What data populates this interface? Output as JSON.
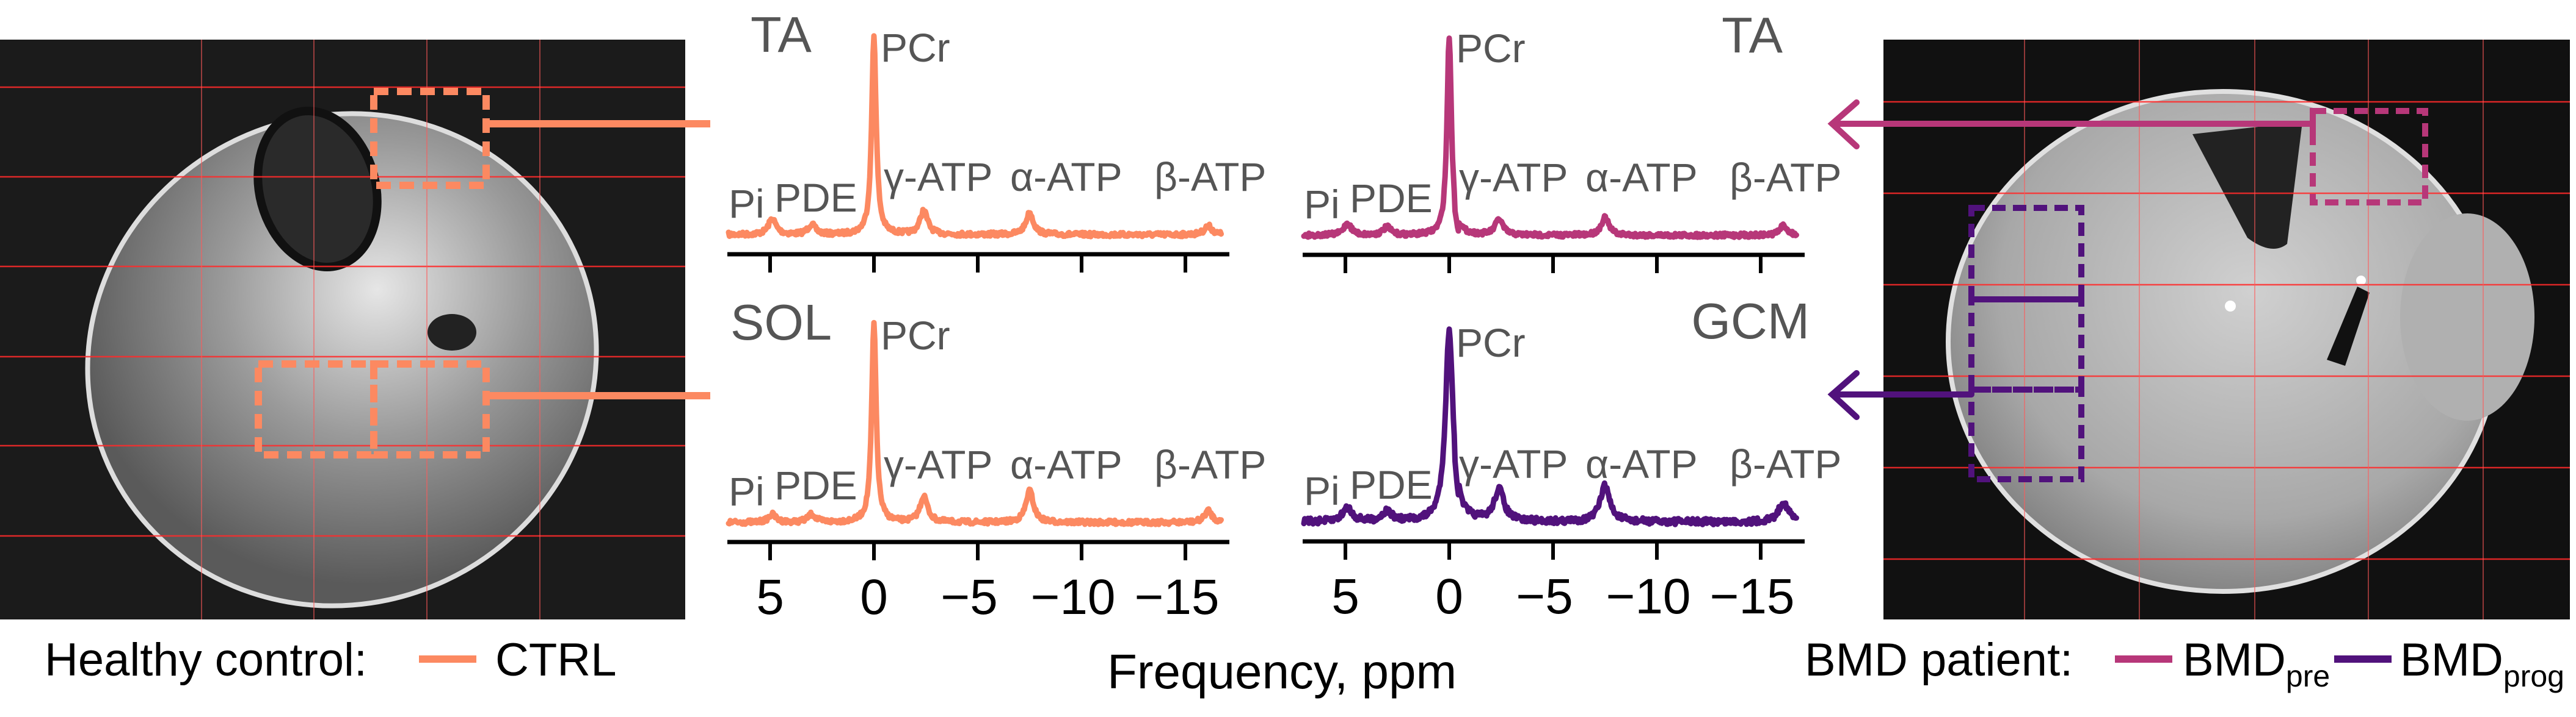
{
  "colors": {
    "ctrl": "#FC8961",
    "bmd_pre": "#B73779",
    "bmd_prog": "#51127C",
    "grid_overlay": "#FF2A2A",
    "label_gray": "#555555"
  },
  "left_image": {
    "icon": "mri-leg-cross-section-healthy"
  },
  "right_image": {
    "icon": "mri-leg-cross-section-bmd"
  },
  "legend_left": {
    "title": "Healthy control:",
    "entries": [
      {
        "label": "CTRL"
      }
    ]
  },
  "legend_right": {
    "title": "BMD patient:",
    "entries": [
      {
        "label": "BMD",
        "sub": "pre"
      },
      {
        "label": "BMD",
        "sub": "prog"
      }
    ]
  },
  "xlabel": "Frequency, ppm",
  "chart_data": [
    {
      "type": "line",
      "panel": "TA",
      "group": "CTRL",
      "color": "#FC8961",
      "xlim": [
        7,
        -17
      ],
      "xticks": [
        "5",
        "0",
        "−5",
        "−10",
        "−15"
      ],
      "xtick_values": [
        5,
        0,
        -5,
        -10,
        -15
      ],
      "peaks": [
        {
          "label": "Pi",
          "ppm": 4.9,
          "height": 0.08
        },
        {
          "label": "PDE",
          "ppm": 3.0,
          "height": 0.05
        },
        {
          "label": "PCr",
          "ppm": 0,
          "height": 1.0
        },
        {
          "label": "γ-ATP",
          "ppm": -2.4,
          "height": 0.12
        },
        {
          "label": "α-ATP",
          "ppm": -7.5,
          "height": 0.11
        },
        {
          "label": "β-ATP",
          "ppm": -16.1,
          "height": 0.045
        }
      ]
    },
    {
      "type": "line",
      "panel": "SOL",
      "group": "CTRL",
      "color": "#FC8961",
      "xlim": [
        7,
        -17
      ],
      "xticks": [
        "5",
        "0",
        "−5",
        "−10",
        "−15"
      ],
      "xtick_values": [
        5,
        0,
        -5,
        -10,
        -15
      ],
      "peaks": [
        {
          "label": "Pi",
          "ppm": 4.9,
          "height": 0.04
        },
        {
          "label": "PDE",
          "ppm": 3.0,
          "height": 0.04
        },
        {
          "label": "PCr",
          "ppm": 0,
          "height": 1.0
        },
        {
          "label": "γ-ATP",
          "ppm": -2.4,
          "height": 0.13
        },
        {
          "label": "α-ATP",
          "ppm": -7.5,
          "height": 0.16
        },
        {
          "label": "β-ATP",
          "ppm": -16.1,
          "height": 0.06
        }
      ]
    },
    {
      "type": "line",
      "panel": "TA",
      "group": "BMD pre",
      "color": "#B73779",
      "xlim": [
        7,
        -17
      ],
      "xticks": [
        "5",
        "0",
        "−5",
        "−10",
        "−15"
      ],
      "xtick_values": [
        5,
        0,
        -5,
        -10,
        -15
      ],
      "peaks": [
        {
          "label": "Pi",
          "ppm": 4.9,
          "height": 0.06
        },
        {
          "label": "PDE",
          "ppm": 3.0,
          "height": 0.04
        },
        {
          "label": "PCr",
          "ppm": 0,
          "height": 1.0
        },
        {
          "label": "γ-ATP",
          "ppm": -2.4,
          "height": 0.08
        },
        {
          "label": "α-ATP",
          "ppm": -7.5,
          "height": 0.09
        },
        {
          "label": "β-ATP",
          "ppm": -16.1,
          "height": 0.05
        }
      ]
    },
    {
      "type": "line",
      "panel": "GCM",
      "group": "BMD prog",
      "color": "#51127C",
      "xlim": [
        7,
        -17
      ],
      "xticks": [
        "5",
        "0",
        "−5",
        "−10",
        "−15"
      ],
      "xtick_values": [
        5,
        0,
        -5,
        -10,
        -15
      ],
      "peaks": [
        {
          "label": "Pi",
          "ppm": 4.9,
          "height": 0.07
        },
        {
          "label": "PDE",
          "ppm": 3.0,
          "height": 0.05
        },
        {
          "label": "PCr",
          "ppm": 0,
          "height": 0.96
        },
        {
          "label": "γ-ATP",
          "ppm": -2.4,
          "height": 0.16
        },
        {
          "label": "α-ATP",
          "ppm": -7.5,
          "height": 0.18
        },
        {
          "label": "β-ATP",
          "ppm": -16.1,
          "height": 0.1
        }
      ]
    }
  ]
}
